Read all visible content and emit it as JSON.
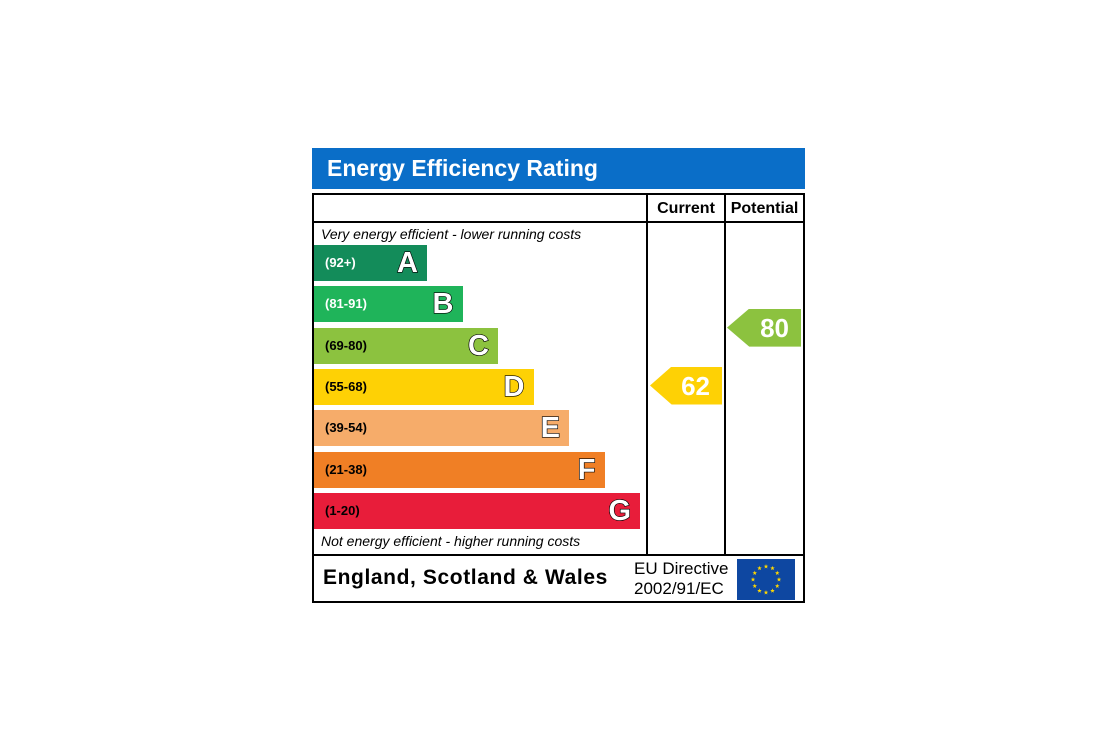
{
  "chart_data": {
    "type": "table",
    "title": "Energy Efficiency Rating",
    "columns": [
      "Current",
      "Potential"
    ],
    "top_note": "Very energy efficient - lower running costs",
    "bottom_note": "Not energy efficient - higher running costs",
    "bands": [
      {
        "letter": "A",
        "range": "(92+)",
        "min": 92,
        "max": 100,
        "color": "#138c5a",
        "text_color": "#ffffff"
      },
      {
        "letter": "B",
        "range": "(81-91)",
        "min": 81,
        "max": 91,
        "color": "#1fb45a",
        "text_color": "#ffffff"
      },
      {
        "letter": "C",
        "range": "(69-80)",
        "min": 69,
        "max": 80,
        "color": "#8cc23f",
        "text_color": "#000000"
      },
      {
        "letter": "D",
        "range": "(55-68)",
        "min": 55,
        "max": 68,
        "color": "#fed105",
        "text_color": "#000000"
      },
      {
        "letter": "E",
        "range": "(39-54)",
        "min": 39,
        "max": 54,
        "color": "#f6ac6a",
        "text_color": "#000000"
      },
      {
        "letter": "F",
        "range": "(21-38)",
        "min": 21,
        "max": 38,
        "color": "#f07f25",
        "text_color": "#000000"
      },
      {
        "letter": "G",
        "range": "(1-20)",
        "min": 1,
        "max": 20,
        "color": "#e81d3a",
        "text_color": "#000000"
      }
    ],
    "current": {
      "value": 62,
      "band": "D",
      "color": "#fed105"
    },
    "potential": {
      "value": 80,
      "band": "C",
      "color": "#8cc23f"
    },
    "footer": {
      "country": "England, Scotland & Wales",
      "directive_line1": "EU Directive",
      "directive_line2": "2002/91/EC"
    }
  },
  "colors": {
    "header_blue": "#0a6ec8",
    "eu_flag_blue": "#0e47a1",
    "eu_star_yellow": "#ffd700"
  },
  "icons": {
    "eu_flag": "eu-flag-icon"
  }
}
